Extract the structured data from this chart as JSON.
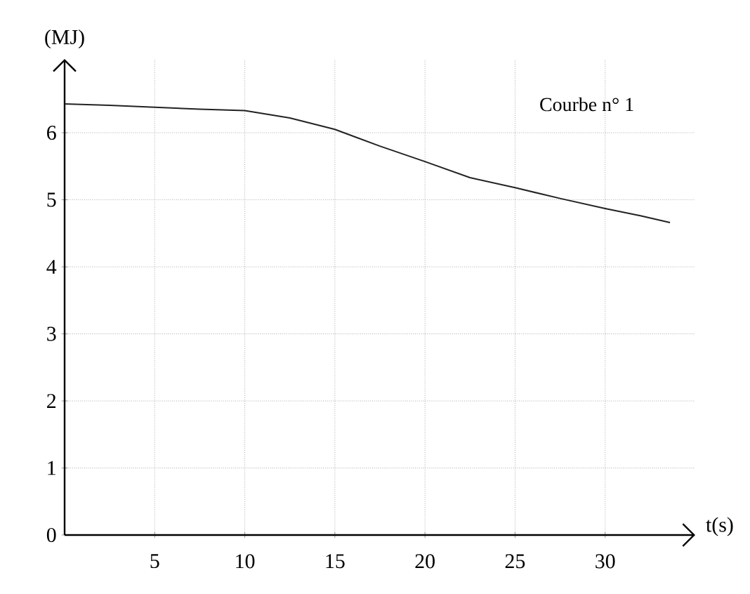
{
  "chart_data": {
    "type": "line",
    "xlabel": "t(s)",
    "ylabel": "(MJ)",
    "x": [
      0,
      2.5,
      5,
      7.5,
      10,
      12.5,
      15,
      17.5,
      20,
      22.5,
      25,
      27.5,
      30,
      32,
      33.6
    ],
    "series": [
      {
        "color": "#222222",
        "values": [
          6.43,
          6.41,
          6.38,
          6.35,
          6.33,
          6.22,
          6.05,
          5.8,
          5.57,
          5.33,
          5.18,
          5.02,
          4.87,
          4.76,
          4.66
        ]
      }
    ],
    "xlim": [
      0,
      35
    ],
    "ylim": [
      0,
      7.1
    ],
    "xticks": [
      5,
      10,
      15,
      20,
      25,
      30
    ],
    "yticks": [
      0,
      1,
      2,
      3,
      4,
      5,
      6
    ],
    "grid": true,
    "marker": "none",
    "line_style": "solid",
    "annotations": [
      "Courbe  n° 1"
    ]
  }
}
